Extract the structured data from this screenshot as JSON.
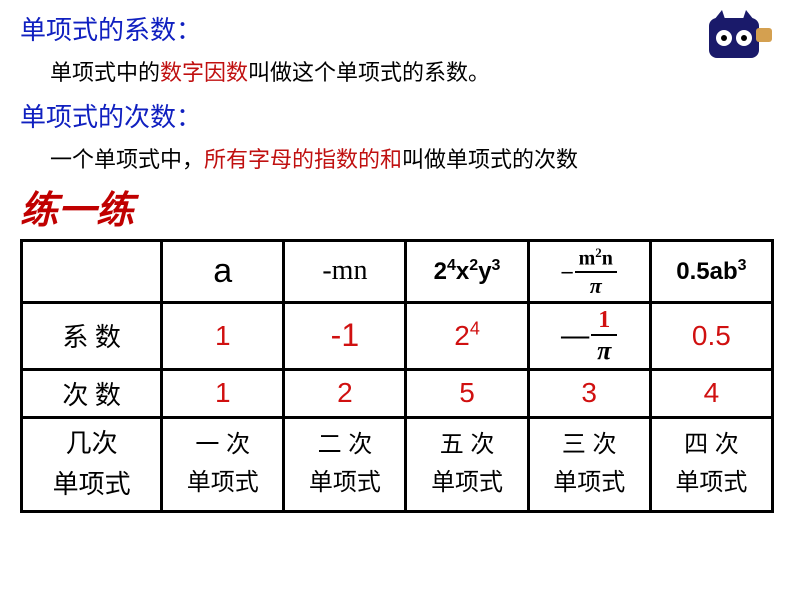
{
  "colors": {
    "title_blue": "#1020c0",
    "emphasis_red": "#c01010",
    "answer_red": "#d01010",
    "text_black": "#000000",
    "background": "#ffffff",
    "border": "#000000"
  },
  "header": {
    "title1": "单项式的系数：",
    "desc1_pre": "单项式中的",
    "desc1_em": "数字因数",
    "desc1_post": "叫做这个单项式的系数。",
    "title2": "单项式的次数：",
    "desc2_pre": "一个单项式中，",
    "desc2_em": "所有字母的指数的和",
    "desc2_post": "叫做单项式的次数"
  },
  "practice_label": "练一练",
  "table": {
    "row_labels": {
      "coefficient": "系  数",
      "degree": "次  数",
      "classification_l1": "几次",
      "classification_l2": "单项式"
    },
    "columns": [
      {
        "expression": {
          "type": "plain",
          "text": "a"
        },
        "coefficient": {
          "text": "1"
        },
        "degree": {
          "text": "1"
        },
        "classification_l1": "一  次",
        "classification_l2": "单项式"
      },
      {
        "expression": {
          "type": "serif",
          "text": "-mn"
        },
        "coefficient": {
          "text": "-1"
        },
        "degree": {
          "text": "2"
        },
        "classification_l1": "二  次",
        "classification_l2": "单项式"
      },
      {
        "expression": {
          "type": "power",
          "html": "2<sup>4</sup>x<sup>2</sup>y<sup>3</sup>"
        },
        "coefficient": {
          "html": "2<sup>4</sup>"
        },
        "degree": {
          "text": "5"
        },
        "classification_l1": "五  次",
        "classification_l2": "单项式"
      },
      {
        "expression": {
          "type": "fraction",
          "sign": "–",
          "num_html": "m<sup>2</sup>n",
          "den": "π"
        },
        "coefficient": {
          "type": "fraction",
          "sign": "—",
          "num": "1",
          "den": "π"
        },
        "degree": {
          "text": "3"
        },
        "classification_l1": "三 次",
        "classification_l2": "单项式"
      },
      {
        "expression": {
          "type": "power",
          "html": "0.5ab<sup>3</sup>"
        },
        "coefficient": {
          "text": "0.5"
        },
        "degree": {
          "text": "4"
        },
        "classification_l1": "四  次",
        "classification_l2": "单项式"
      }
    ]
  }
}
